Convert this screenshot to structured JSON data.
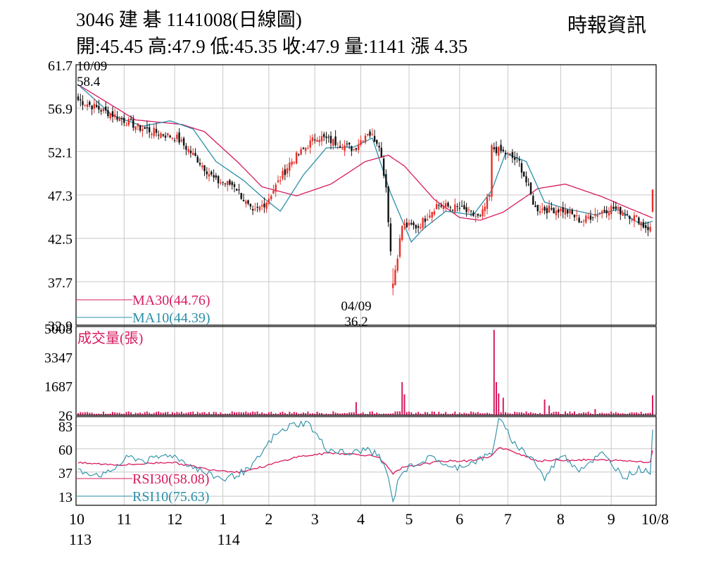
{
  "header": {
    "title": "3046  建    碁 1141008(日線圖)",
    "ohlc": "開:45.45 高:47.9 低:45.35 收:47.9 量:1141 漲 4.35",
    "source": "時報資訊"
  },
  "colors": {
    "up": "#e8302a",
    "down": "#111111",
    "ma30": "#d81b60",
    "ma10": "#2a8fa8",
    "volume": "#d81b60",
    "grid": "#c8c8c8"
  },
  "chart_data": [
    {
      "type": "candlestick",
      "title": "",
      "price_axis": {
        "ticks": [
          "61.7",
          "56.9",
          "52.1",
          "47.3",
          "42.5",
          "37.7",
          "32.9"
        ],
        "ylim": [
          32.9,
          61.7
        ]
      },
      "months": [
        "10",
        "11",
        "12",
        "1",
        "2",
        "3",
        "4",
        "5",
        "6",
        "7",
        "8",
        "9",
        "10/8"
      ],
      "years": [
        {
          "label": "113",
          "at": "10"
        },
        {
          "label": "114",
          "at": "1"
        }
      ],
      "annotations": [
        {
          "date": "10/09",
          "value": "58.4",
          "kind": "high"
        },
        {
          "date": "04/09",
          "value": "36.2",
          "kind": "low"
        }
      ],
      "legend": [
        {
          "name": "MA30",
          "label": "MA30(44.76)",
          "color": "#d81b60"
        },
        {
          "name": "MA10",
          "label": "MA10(44.39)",
          "color": "#2a8fa8"
        }
      ],
      "close_anchors": [
        [
          0,
          57.8
        ],
        [
          14,
          56.3
        ],
        [
          27,
          54.7
        ],
        [
          43,
          53.6
        ],
        [
          52,
          51.2
        ],
        [
          60,
          48.8
        ],
        [
          68,
          48.4
        ],
        [
          76,
          45.2
        ],
        [
          82,
          46.6
        ],
        [
          92,
          50.8
        ],
        [
          104,
          53.8
        ],
        [
          120,
          52.4
        ],
        [
          126,
          54.3
        ],
        [
          131,
          53.0
        ],
        [
          134,
          48.2
        ],
        [
          137,
          37.5
        ],
        [
          141,
          43.9
        ],
        [
          148,
          43.8
        ],
        [
          156,
          46.2
        ],
        [
          166,
          45.8
        ],
        [
          175,
          44.7
        ],
        [
          179,
          47.2
        ],
        [
          180,
          52.5
        ],
        [
          186,
          51.9
        ],
        [
          192,
          50.9
        ],
        [
          199,
          45.8
        ],
        [
          206,
          45.7
        ],
        [
          212,
          45.6
        ],
        [
          219,
          44.4
        ],
        [
          225,
          45.2
        ],
        [
          232,
          45.9
        ],
        [
          238,
          45.3
        ],
        [
          244,
          44.6
        ],
        [
          246,
          43.9
        ],
        [
          249,
          43.55
        ],
        [
          250,
          47.9
        ]
      ],
      "ma30_anchors": [
        [
          0,
          59.5
        ],
        [
          25,
          55.6
        ],
        [
          45,
          55.1
        ],
        [
          55,
          54.3
        ],
        [
          70,
          50.8
        ],
        [
          80,
          48.2
        ],
        [
          95,
          47.2
        ],
        [
          110,
          48.5
        ],
        [
          125,
          51.0
        ],
        [
          135,
          51.7
        ],
        [
          142,
          50.5
        ],
        [
          155,
          46.8
        ],
        [
          166,
          44.8
        ],
        [
          175,
          44.5
        ],
        [
          185,
          45.4
        ],
        [
          200,
          48.0
        ],
        [
          212,
          48.5
        ],
        [
          228,
          47.1
        ],
        [
          240,
          45.8
        ],
        [
          250,
          44.76
        ]
      ],
      "ma10_anchors": [
        [
          0,
          59.5
        ],
        [
          15,
          56.1
        ],
        [
          28,
          54.9
        ],
        [
          40,
          55.5
        ],
        [
          50,
          54.6
        ],
        [
          60,
          51.0
        ],
        [
          72,
          48.9
        ],
        [
          80,
          47.1
        ],
        [
          88,
          45.5
        ],
        [
          98,
          49.5
        ],
        [
          108,
          52.5
        ],
        [
          120,
          52.6
        ],
        [
          128,
          53.6
        ],
        [
          136,
          47.5
        ],
        [
          145,
          42.1
        ],
        [
          150,
          43.5
        ],
        [
          160,
          45.5
        ],
        [
          172,
          45.1
        ],
        [
          180,
          47.8
        ],
        [
          186,
          51.9
        ],
        [
          195,
          51.0
        ],
        [
          203,
          46.5
        ],
        [
          212,
          45.8
        ],
        [
          225,
          45.1
        ],
        [
          235,
          45.7
        ],
        [
          245,
          44.0
        ],
        [
          250,
          44.39
        ]
      ],
      "volume": {
        "title": "成交量(張)",
        "ticks": [
          "5008",
          "3347",
          "1687",
          "26"
        ],
        "ylim": [
          0,
          5008
        ],
        "spikes": [
          [
            121,
            750
          ],
          [
            141,
            1900
          ],
          [
            142,
            1200
          ],
          [
            181,
            4900
          ],
          [
            182,
            1900
          ],
          [
            183,
            1250
          ],
          [
            185,
            1000
          ],
          [
            203,
            900
          ],
          [
            205,
            550
          ],
          [
            225,
            350
          ],
          [
            250,
            1141
          ]
        ],
        "baseline": 160
      },
      "rsi": {
        "ticks": [
          "83",
          "60",
          "37",
          "13"
        ],
        "ylim": [
          4,
          92
        ],
        "legend": [
          {
            "name": "RSI30",
            "label": "RSI30(58.08)",
            "color": "#d81b60"
          },
          {
            "name": "RSI10",
            "label": "RSI10(75.63)",
            "color": "#2a8fa8"
          }
        ],
        "rsi30_anchors": [
          [
            0,
            46
          ],
          [
            20,
            44
          ],
          [
            40,
            47
          ],
          [
            56,
            40
          ],
          [
            70,
            37
          ],
          [
            80,
            42
          ],
          [
            95,
            52
          ],
          [
            110,
            56
          ],
          [
            125,
            54
          ],
          [
            131,
            52
          ],
          [
            137,
            35
          ],
          [
            141,
            41
          ],
          [
            150,
            45
          ],
          [
            160,
            48
          ],
          [
            170,
            48
          ],
          [
            180,
            53
          ],
          [
            183,
            61
          ],
          [
            190,
            57
          ],
          [
            200,
            48
          ],
          [
            212,
            49
          ],
          [
            225,
            49
          ],
          [
            240,
            48
          ],
          [
            249,
            47
          ],
          [
            250,
            58.08
          ]
        ],
        "rsi10_anchors": [
          [
            0,
            38
          ],
          [
            12,
            34
          ],
          [
            22,
            52
          ],
          [
            30,
            48
          ],
          [
            40,
            55
          ],
          [
            56,
            35
          ],
          [
            64,
            30
          ],
          [
            75,
            40
          ],
          [
            85,
            72
          ],
          [
            93,
            84
          ],
          [
            100,
            86
          ],
          [
            108,
            60
          ],
          [
            118,
            55
          ],
          [
            126,
            60
          ],
          [
            131,
            52
          ],
          [
            134,
            40
          ],
          [
            137,
            7
          ],
          [
            140,
            35
          ],
          [
            146,
            45
          ],
          [
            155,
            52
          ],
          [
            162,
            40
          ],
          [
            172,
            47
          ],
          [
            180,
            55
          ],
          [
            183,
            90
          ],
          [
            190,
            65
          ],
          [
            198,
            50
          ],
          [
            203,
            30
          ],
          [
            210,
            55
          ],
          [
            218,
            40
          ],
          [
            228,
            55
          ],
          [
            238,
            32
          ],
          [
            244,
            40
          ],
          [
            249,
            38
          ],
          [
            250,
            75.63
          ]
        ]
      }
    }
  ]
}
